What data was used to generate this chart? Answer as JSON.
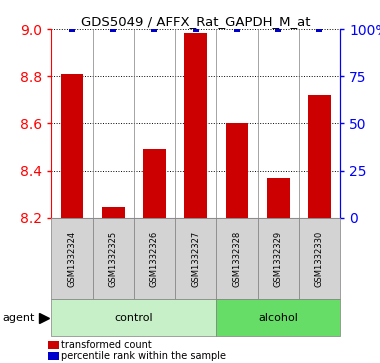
{
  "title": "GDS5049 / AFFX_Rat_GAPDH_M_at",
  "samples": [
    "GSM1332324",
    "GSM1332325",
    "GSM1332326",
    "GSM1332327",
    "GSM1332328",
    "GSM1332329",
    "GSM1332330"
  ],
  "transformed_count": [
    8.81,
    8.245,
    8.49,
    8.985,
    8.6,
    8.37,
    8.72
  ],
  "percentile_rank": [
    100,
    100,
    100,
    100,
    100,
    100,
    100
  ],
  "ylim_left": [
    8.2,
    9.0
  ],
  "ylim_right": [
    0,
    100
  ],
  "yticks_left": [
    8.2,
    8.4,
    8.6,
    8.8,
    9.0
  ],
  "yticks_right": [
    0,
    25,
    50,
    75,
    100
  ],
  "groups": [
    {
      "label": "control",
      "indices": [
        0,
        1,
        2,
        3
      ],
      "color": "#c8f0c8"
    },
    {
      "label": "alcohol",
      "indices": [
        4,
        5,
        6
      ],
      "color": "#66dd66"
    }
  ],
  "bar_color": "#cc0000",
  "dot_color": "#0000cc",
  "bar_width": 0.55,
  "background_plot": "#ffffff",
  "background_sample": "#d3d3d3",
  "agent_label": "agent",
  "legend_items": [
    {
      "color": "#cc0000",
      "label": "transformed count"
    },
    {
      "color": "#0000cc",
      "label": "percentile rank within the sample"
    }
  ]
}
